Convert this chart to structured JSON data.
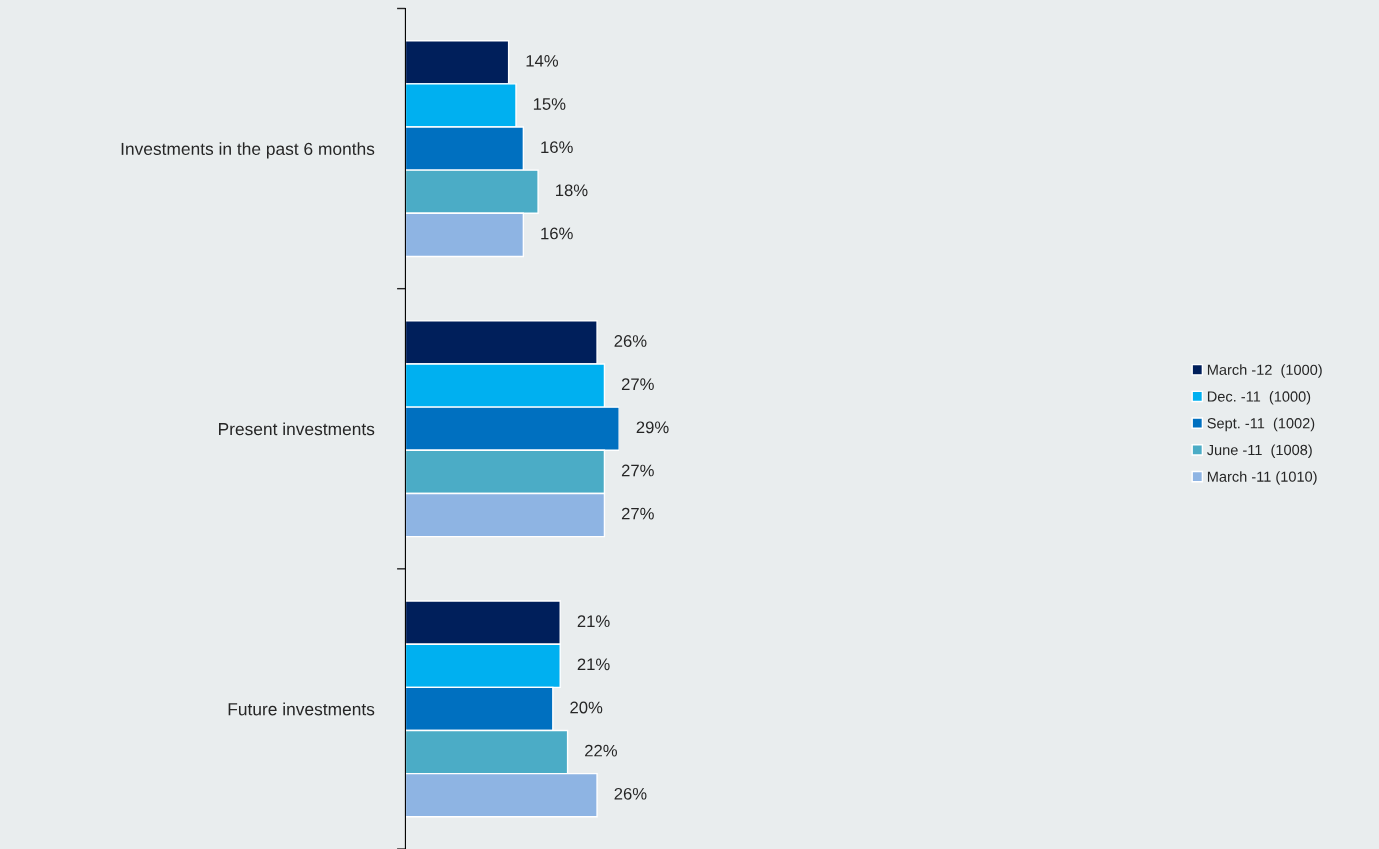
{
  "chart_data": {
    "type": "bar",
    "orientation": "horizontal",
    "categories": [
      "Investments in the past 6 months",
      "Present investments",
      "Future investments"
    ],
    "series": [
      {
        "name": "March -12  (1000)",
        "color": "#001f5b",
        "values": [
          14,
          26,
          21
        ],
        "value_labels": [
          "14%",
          "26%",
          "21%"
        ]
      },
      {
        "name": "Dec. -11  (1000)",
        "color": "#00b0f0",
        "values": [
          15,
          27,
          21
        ],
        "value_labels": [
          "15%",
          "27%",
          "21%"
        ]
      },
      {
        "name": "Sept. -11  (1002)",
        "color": "#0070c0",
        "values": [
          16,
          29,
          20
        ],
        "value_labels": [
          "16%",
          "29%",
          "20%"
        ]
      },
      {
        "name": "June -11  (1008)",
        "color": "#4bacc6",
        "values": [
          18,
          27,
          22
        ],
        "value_labels": [
          "18%",
          "27%",
          "22%"
        ]
      },
      {
        "name": "March -11 (1010)",
        "color": "#8eb4e3",
        "values": [
          16,
          27,
          26
        ],
        "value_labels": [
          "16%",
          "27%",
          "26%"
        ]
      }
    ],
    "tick_labels": "y",
    "grid": false,
    "legend": "right"
  }
}
